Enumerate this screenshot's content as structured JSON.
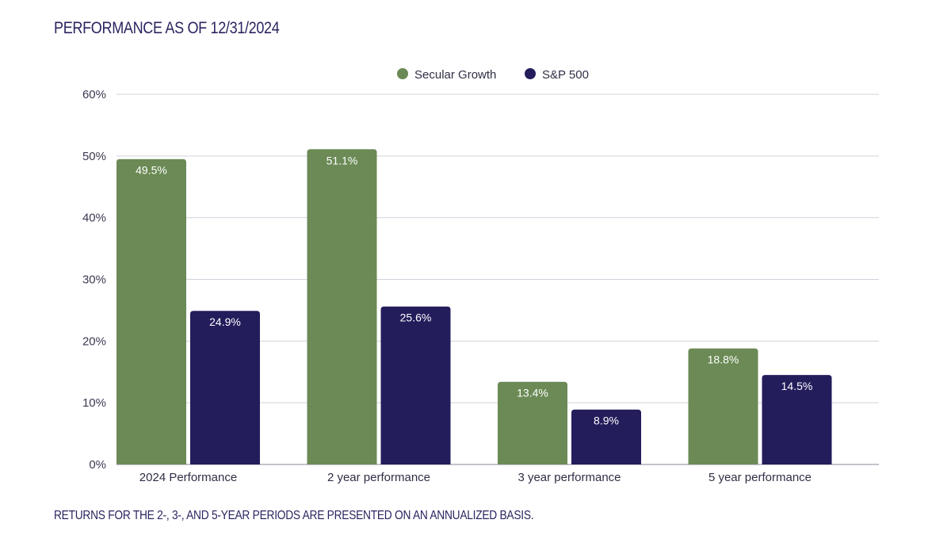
{
  "header": {
    "title": "PERFORMANCE AS OF 12/31/2024"
  },
  "footer": {
    "note": "RETURNS FOR THE 2-, 3-, AND 5-YEAR PERIODS ARE PRESENTED ON AN ANNUALIZED BASIS."
  },
  "chart_data": {
    "type": "bar",
    "title": "PERFORMANCE AS OF 12/31/2024",
    "xlabel": "",
    "ylabel": "",
    "categories": [
      "2024 Performance",
      "2 year performance",
      "3 year performance",
      "5 year performance"
    ],
    "series": [
      {
        "name": "Secular Growth",
        "color": "#6b8a55",
        "values": [
          49.5,
          51.1,
          13.4,
          18.8
        ],
        "labels": [
          "49.5%",
          "51.1%",
          "13.4%",
          "18.8%"
        ]
      },
      {
        "name": "S&P 500",
        "color": "#231d5c",
        "values": [
          24.9,
          25.6,
          8.9,
          14.5
        ],
        "labels": [
          "24.9%",
          "25.6%",
          "8.9%",
          "14.5%"
        ]
      }
    ],
    "ylim": [
      0,
      60
    ],
    "yticks": [
      0,
      10,
      20,
      30,
      40,
      50,
      60
    ],
    "ytick_labels": [
      "0%",
      "10%",
      "20%",
      "30%",
      "40%",
      "50%",
      "60%"
    ],
    "grid": true,
    "legend": "top-center"
  }
}
